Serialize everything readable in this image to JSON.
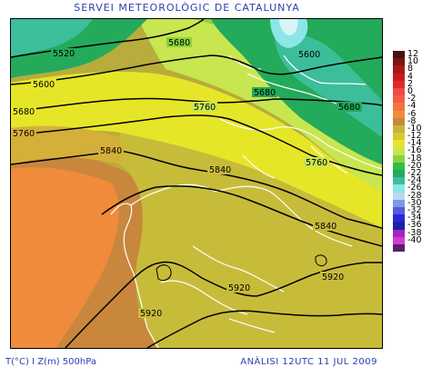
{
  "header": {
    "title": "SERVEI METEOROLÒGIC DE CATALUNYA"
  },
  "footer": {
    "left": "T(°C) I Z(m) 500hPa",
    "right": "ANÀLISI 12UTC 11 JUL 2009"
  },
  "contour_labels": [
    {
      "text": "5520"
    },
    {
      "text": "5600"
    },
    {
      "text": "5680"
    },
    {
      "text": "5760"
    },
    {
      "text": "5680"
    },
    {
      "text": "5600"
    },
    {
      "text": "5680"
    },
    {
      "text": "5680"
    },
    {
      "text": "5760"
    },
    {
      "text": "5840"
    },
    {
      "text": "5840"
    },
    {
      "text": "5760"
    },
    {
      "text": "5840"
    },
    {
      "text": "5920"
    },
    {
      "text": "5920"
    },
    {
      "text": "5920"
    }
  ],
  "legend": [
    {
      "label": "12",
      "color": "#4a0f0f"
    },
    {
      "label": "10",
      "color": "#7a1414"
    },
    {
      "label": "8",
      "color": "#a81818"
    },
    {
      "label": "4",
      "color": "#c81c1c"
    },
    {
      "label": "2",
      "color": "#e02a2a"
    },
    {
      "label": "0",
      "color": "#f04848"
    },
    {
      "label": "-2",
      "color": "#f25c4a"
    },
    {
      "label": "-4",
      "color": "#f0763c"
    },
    {
      "label": "-6",
      "color": "#f08b3c"
    },
    {
      "label": "-8",
      "color": "#c8873c"
    },
    {
      "label": "-10",
      "color": "#c8b43c"
    },
    {
      "label": "-12",
      "color": "#d7c832"
    },
    {
      "label": "-14",
      "color": "#e6e628"
    },
    {
      "label": "-16",
      "color": "#c8e650"
    },
    {
      "label": "-18",
      "color": "#8cd23c"
    },
    {
      "label": "-20",
      "color": "#32be46"
    },
    {
      "label": "-22",
      "color": "#23aa5a"
    },
    {
      "label": "-24",
      "color": "#3cbe9b"
    },
    {
      "label": "-26",
      "color": "#8ce6e6"
    },
    {
      "label": "-28",
      "color": "#b9d7f0"
    },
    {
      "label": "-30",
      "color": "#7d9be6"
    },
    {
      "label": "-32",
      "color": "#5a5adc"
    },
    {
      "label": "-34",
      "color": "#2828d2"
    },
    {
      "label": "-36",
      "color": "#1e1eaa"
    },
    {
      "label": "-38",
      "color": "#a028be"
    },
    {
      "label": "-40",
      "color": "#d23cd2"
    },
    {
      "label": "",
      "color": "#5a1e6e"
    }
  ]
}
